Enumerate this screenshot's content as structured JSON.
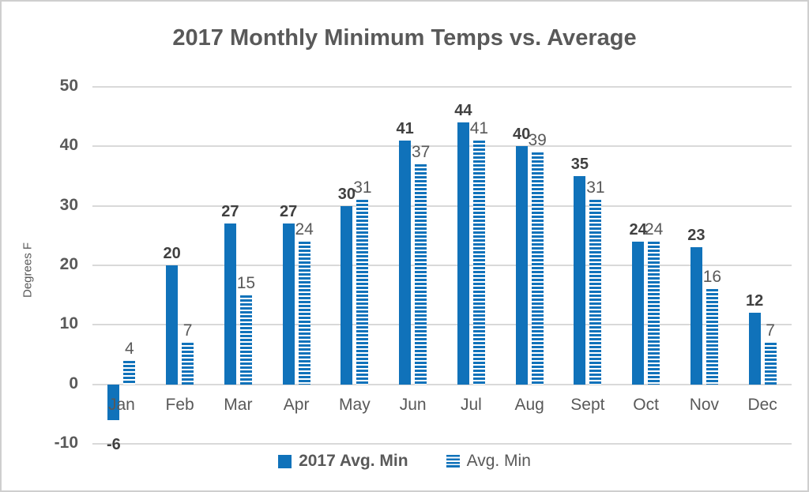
{
  "chart_data": {
    "type": "bar",
    "title": "2017 Monthly Minimum Temps vs. Average",
    "ylabel": "Degrees F",
    "categories": [
      "Jan",
      "Feb",
      "Mar",
      "Apr",
      "May",
      "Jun",
      "Jul",
      "Aug",
      "Sept",
      "Oct",
      "Nov",
      "Dec"
    ],
    "series": [
      {
        "name": "2017 Avg. Min",
        "pattern": "solid",
        "values": [
          -6,
          20,
          27,
          27,
          30,
          41,
          44,
          40,
          35,
          24,
          23,
          12
        ]
      },
      {
        "name": "Avg. Min",
        "pattern": "striped-horizontal",
        "values": [
          4,
          7,
          15,
          24,
          31,
          37,
          41,
          39,
          31,
          24,
          16,
          7
        ]
      }
    ],
    "ylim": [
      -10,
      50
    ],
    "yticks": [
      50,
      40,
      30,
      20,
      10,
      0,
      -10
    ],
    "grid": true,
    "data_labels": true,
    "legend_position": "bottom"
  },
  "colors": {
    "bar_blue": "#1072BA",
    "gridline": "#D9D9D9",
    "text_gray": "#595959",
    "data_label_dark": "#404040",
    "background": "#FFFFFF"
  }
}
